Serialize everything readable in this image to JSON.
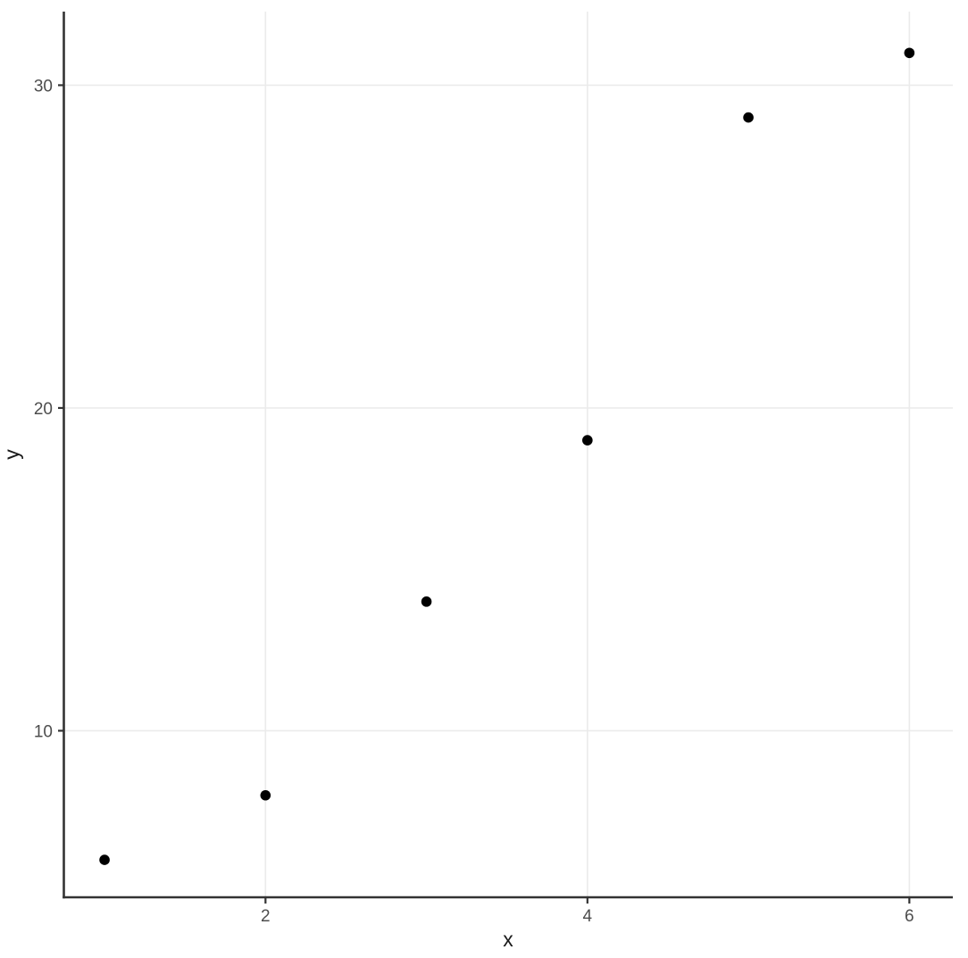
{
  "chart_data": {
    "type": "scatter",
    "title": "",
    "xlabel": "x",
    "ylabel": "y",
    "points": [
      {
        "x": 1,
        "y": 6
      },
      {
        "x": 2,
        "y": 8
      },
      {
        "x": 3,
        "y": 14
      },
      {
        "x": 4,
        "y": 19
      },
      {
        "x": 5,
        "y": 29
      },
      {
        "x": 6,
        "y": 31
      }
    ],
    "x_ticks": [
      2,
      4,
      6
    ],
    "y_ticks": [
      10,
      20,
      30
    ],
    "xlim": [
      0.75,
      6.27
    ],
    "ylim": [
      4.84,
      32.28
    ],
    "grid": "major-only",
    "legend": "none",
    "point_color": "#000000",
    "grid_color": "#ebebeb",
    "axis_color": "#333333",
    "tick_label_color": "#4d4d4d",
    "axis_title_color": "#1a1a1a",
    "background": "#ffffff"
  }
}
